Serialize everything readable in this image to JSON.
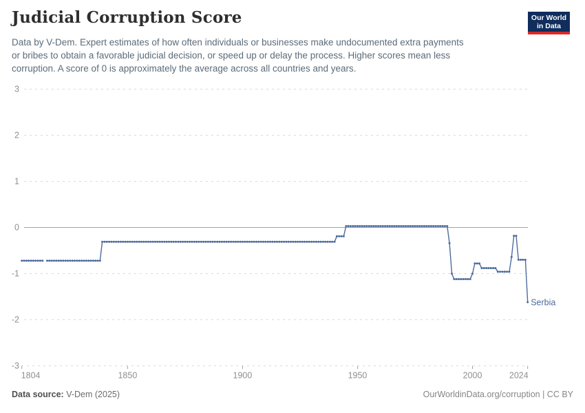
{
  "header": {
    "title": "Judicial Corruption Score",
    "subtitle_lines": [
      "Data by V-Dem. Expert estimates of how often individuals or businesses make undocumented extra payments",
      "or bribes to obtain a favorable judicial decision, or speed up or delay the process. Higher scores mean less",
      "corruption. A score of 0 is approximately the average across all countries and years."
    ],
    "logo": {
      "line1": "Our World",
      "line2": "in Data",
      "navy_color": "#102d5c",
      "red_color": "#dc2828"
    }
  },
  "footer": {
    "source_label": "Data source:",
    "source_value": " V-Dem (2025)",
    "link_text": "OurWorldinData.org/corruption",
    "separator": " | ",
    "license_text": "CC BY"
  },
  "chart_data": {
    "type": "line",
    "title": "Judicial Corruption Score",
    "xlabel": "",
    "ylabel": "",
    "xlim": [
      1804,
      2024
    ],
    "ylim": [
      -3,
      3
    ],
    "xticks": [
      1804,
      1850,
      1900,
      1950,
      2000,
      2024
    ],
    "yticks": [
      3,
      2,
      1,
      0,
      -1,
      -2,
      -3
    ],
    "grid": "dashed-horizontal",
    "legend_position": "end-of-line-label",
    "series": [
      {
        "name": "Serbia",
        "color": "#4c6a9c",
        "note": "yearly data points; gap in 1814",
        "segments": [
          [
            {
              "from": 1804,
              "to": 1813,
              "value": -0.72
            }
          ],
          [
            {
              "from": 1815,
              "to": 1838,
              "value": -0.72
            },
            {
              "from": 1839,
              "to": 1940,
              "value": -0.31
            },
            {
              "from": 1941,
              "to": 1944,
              "value": -0.19
            },
            {
              "from": 1945,
              "to": 1989,
              "value": 0.03
            },
            {
              "from": 1990,
              "to": 1990,
              "value": -0.34
            },
            {
              "from": 1991,
              "to": 1991,
              "value": -1.0
            },
            {
              "from": 1992,
              "to": 1999,
              "value": -1.12
            },
            {
              "from": 2000,
              "to": 2000,
              "value": -1.0
            },
            {
              "from": 2001,
              "to": 2003,
              "value": -0.78
            },
            {
              "from": 2004,
              "to": 2010,
              "value": -0.88
            },
            {
              "from": 2011,
              "to": 2016,
              "value": -0.96
            },
            {
              "from": 2017,
              "to": 2017,
              "value": -0.64
            },
            {
              "from": 2018,
              "to": 2019,
              "value": -0.18
            },
            {
              "from": 2020,
              "to": 2023,
              "value": -0.7
            },
            {
              "from": 2024,
              "to": 2024,
              "value": -1.62
            }
          ]
        ]
      }
    ]
  }
}
